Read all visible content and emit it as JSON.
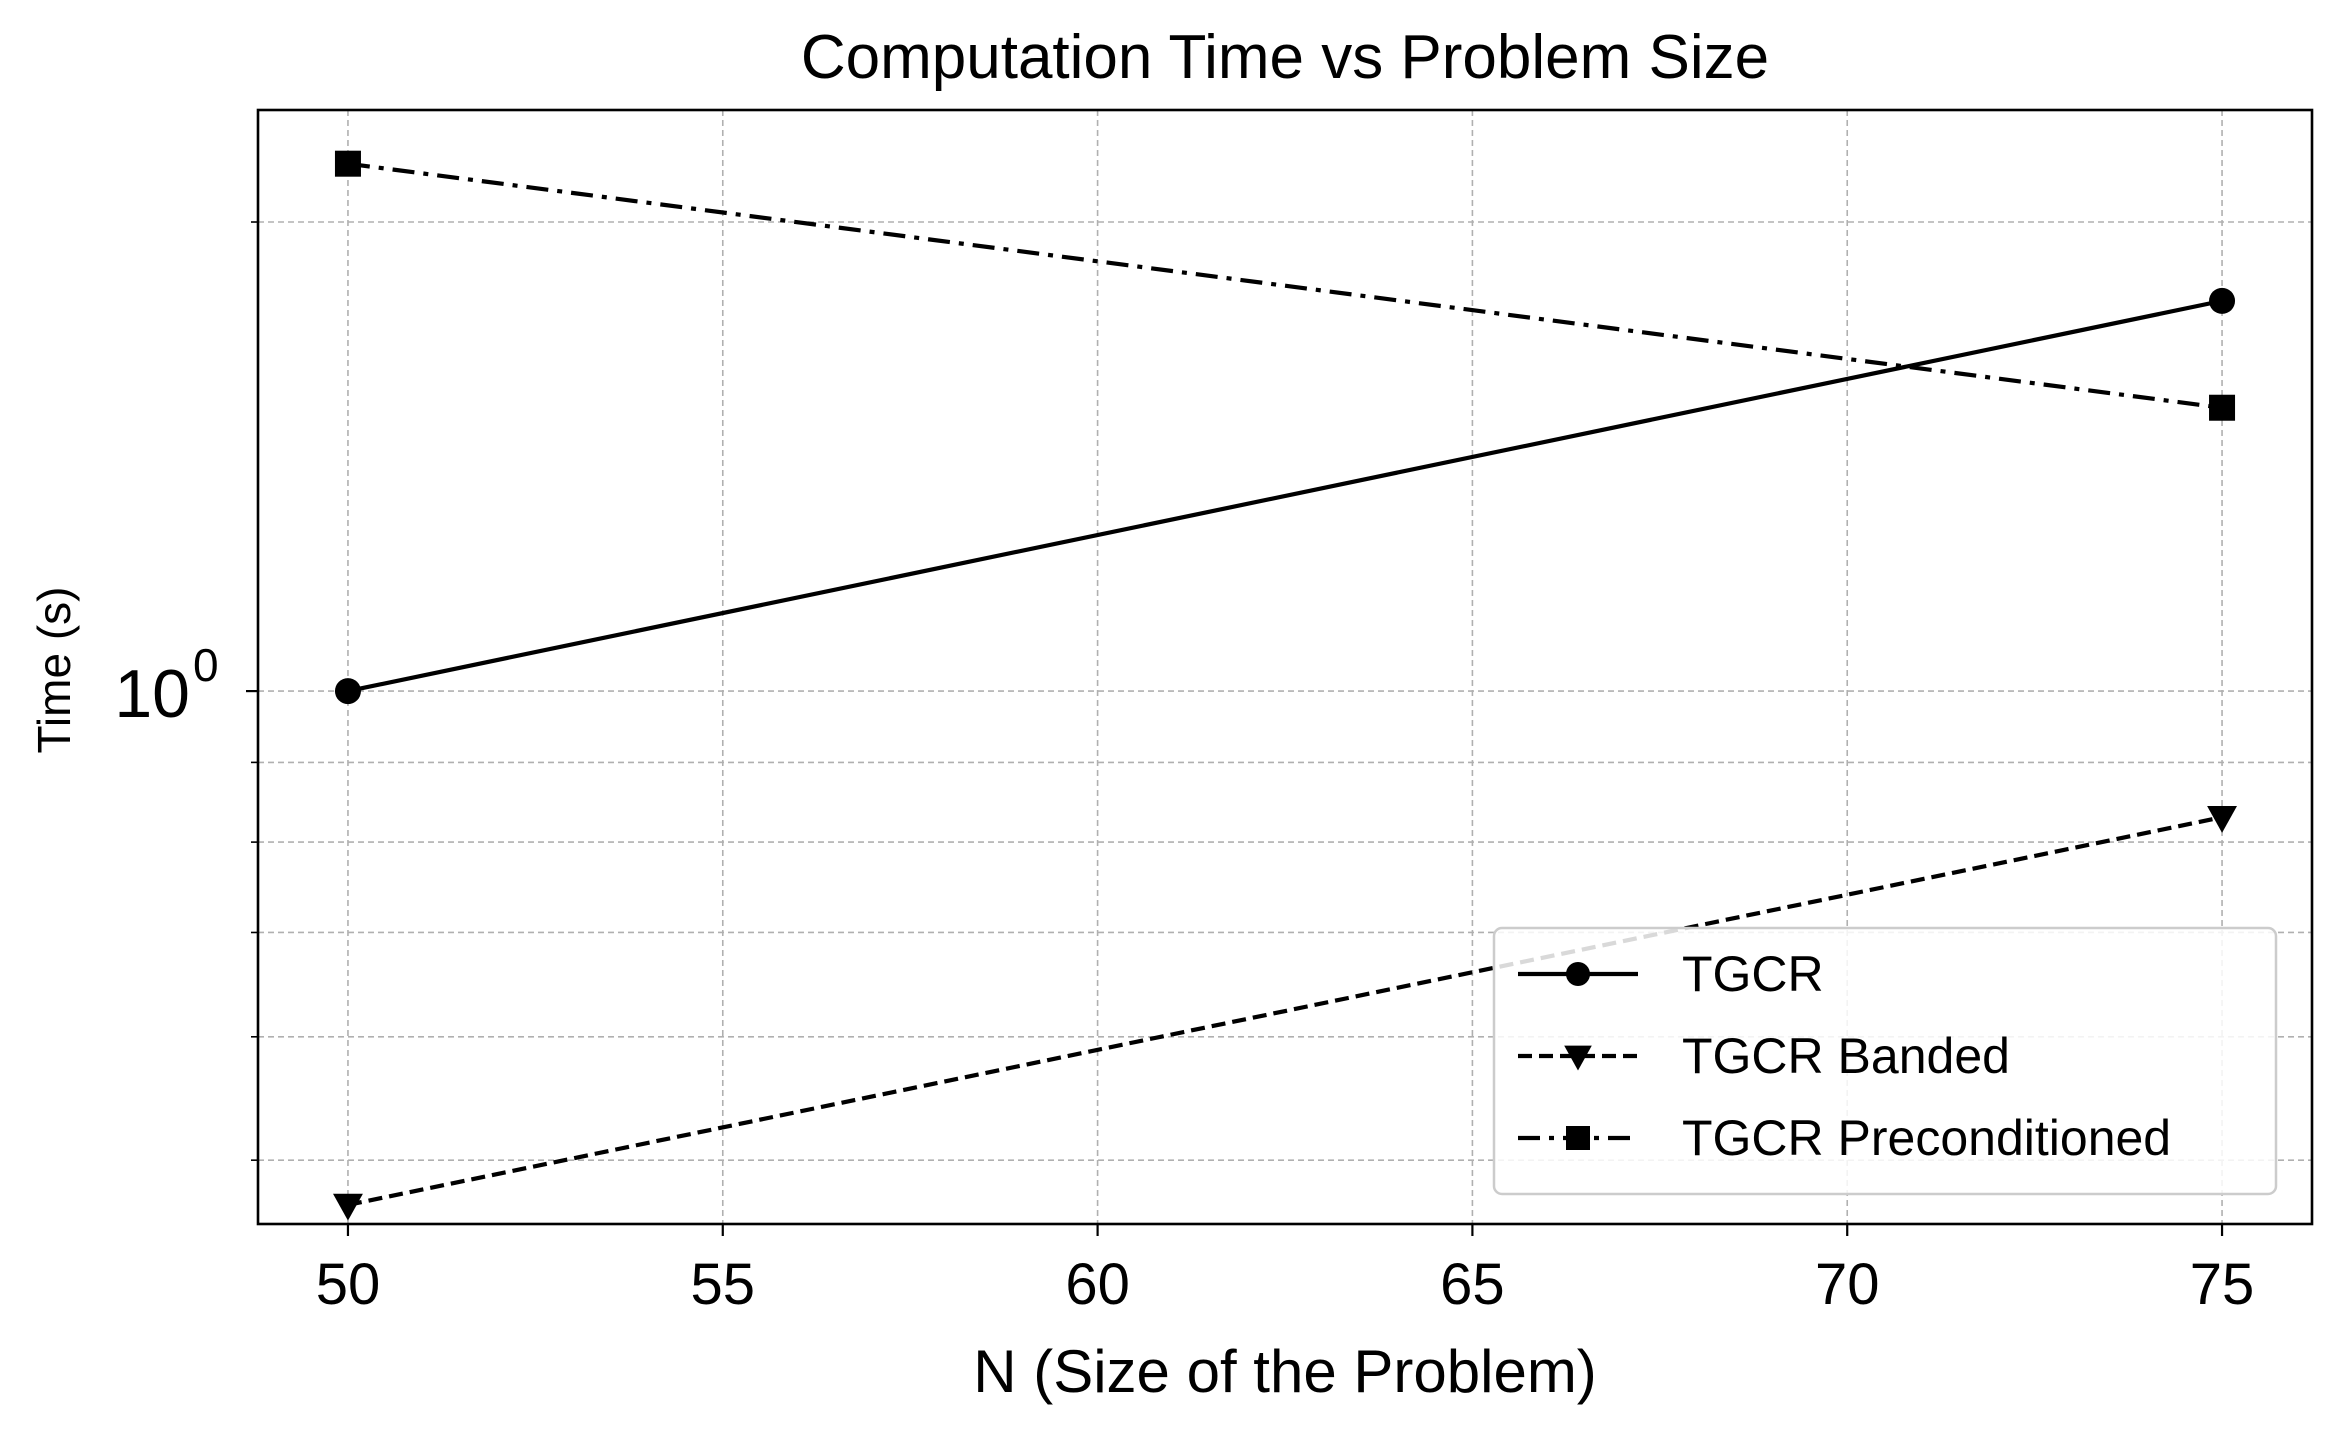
{
  "chart_data": {
    "type": "line",
    "title": "Computation Time vs Problem Size",
    "xlabel": "N (Size of the Problem)",
    "ylabel": "Time (s)",
    "x_ticks": [
      50,
      55,
      60,
      65,
      70,
      75
    ],
    "xlim": [
      48.8,
      76.2
    ],
    "y_scale": "log",
    "ylim": [
      0.455,
      2.36
    ],
    "y_tick_labels": [
      {
        "base": "10",
        "exp": "0",
        "value": 1.0
      }
    ],
    "grid": true,
    "legend_position": "lower right",
    "series": [
      {
        "name": "TGCR",
        "marker": "circle",
        "linestyle": "solid",
        "x": [
          50,
          75
        ],
        "y": [
          1.0,
          1.78
        ]
      },
      {
        "name": "TGCR Banded",
        "marker": "triangle-down",
        "linestyle": "dashed",
        "x": [
          50,
          75
        ],
        "y": [
          0.468,
          0.83
        ]
      },
      {
        "name": "TGCR Preconditioned",
        "marker": "square",
        "linestyle": "dashdot",
        "x": [
          50,
          75
        ],
        "y": [
          2.18,
          1.52
        ]
      }
    ],
    "colors": {
      "line": "#000000",
      "grid": "#b0b0b0",
      "legend_border": "#cccccc"
    }
  }
}
